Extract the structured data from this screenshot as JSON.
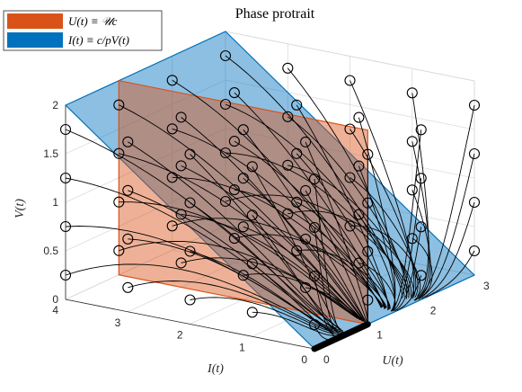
{
  "chart_data": {
    "type": "3d-line",
    "title": "Phase protrait",
    "xlabel": "U(t)",
    "ylabel": "I(t)",
    "zlabel": "V(t)",
    "xlim": [
      0,
      3
    ],
    "ylim": [
      0,
      4
    ],
    "zlim": [
      0,
      2
    ],
    "xticks": [
      "0",
      "1",
      "2",
      "3"
    ],
    "yticks": [
      "0",
      "1",
      "2",
      "3",
      "4"
    ],
    "zticks": [
      "0",
      "0.5",
      "1",
      "1.5",
      "2"
    ],
    "grid": true,
    "legend_position": "top-left",
    "legend": [
      {
        "label": "U(t) ≡ 𝒰c",
        "color": "#d95319"
      },
      {
        "label": "I(t) ≡ c/pV(t)",
        "color": "#0072bd"
      }
    ],
    "planes": [
      {
        "name": "U(t) ≡ 𝒰c",
        "type": "U-constant",
        "U": 1,
        "color": "#d95319"
      },
      {
        "name": "I(t) ≡ c/pV(t)",
        "type": "I-V-plane",
        "color": "#0072bd"
      }
    ],
    "initial_condition_grid": {
      "U": [
        0,
        1,
        2,
        3
      ],
      "I": [
        0,
        1,
        2,
        3,
        4
      ],
      "V": [
        0.25,
        0.75,
        1.25,
        1.75
      ]
    },
    "equilibrium_segment": {
      "U_start": 0,
      "U_end": 1,
      "I": 0,
      "V": 0
    }
  }
}
